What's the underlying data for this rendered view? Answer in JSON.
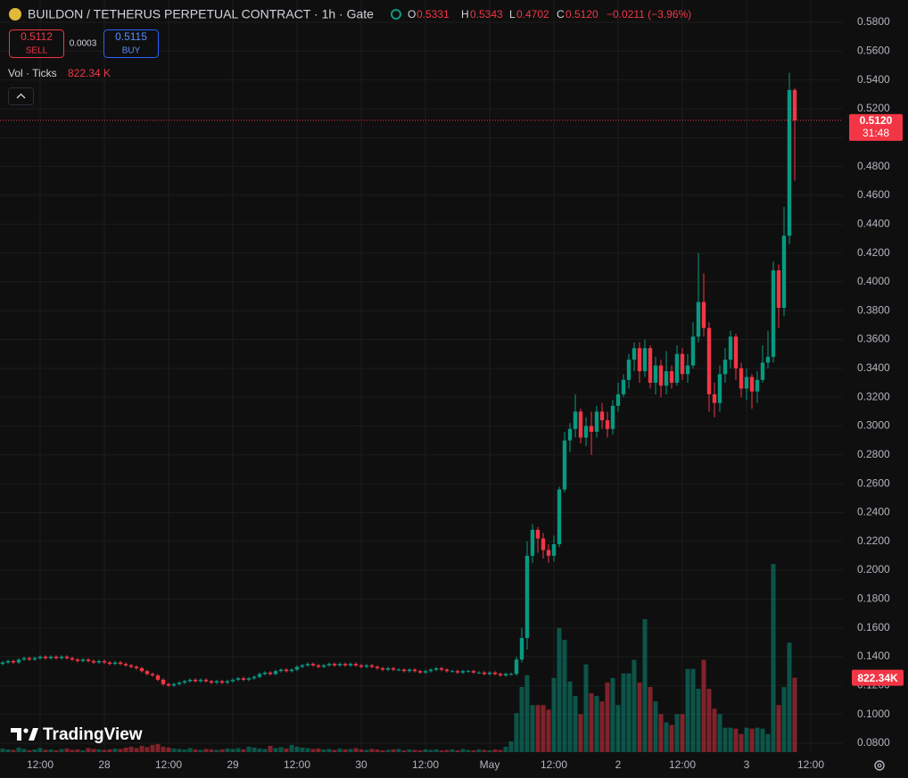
{
  "header": {
    "symbol": "BUILDON / TETHERUS PERPETUAL CONTRACT · 1h · Gate",
    "ohlc": [
      {
        "label": "O",
        "value": "0.5331"
      },
      {
        "label": "H",
        "value": "0.5343"
      },
      {
        "label": "L",
        "value": "0.4702"
      },
      {
        "label": "C",
        "value": "0.5120"
      }
    ],
    "change": "−0.0211 (−3.96%)",
    "sell": {
      "price": "0.5112",
      "label": "SELL"
    },
    "spread": "0.0003",
    "buy": {
      "price": "0.5115",
      "label": "BUY"
    },
    "volume_legend": {
      "label": "Vol · Ticks",
      "value": "822.34 K"
    },
    "price_tag": {
      "price": "0.5120",
      "countdown": "31:48"
    },
    "volume_tag": "822.34K",
    "brand": "TradingView"
  },
  "chart_data": {
    "type": "candlestick",
    "up_color": "#089981",
    "down_color": "#f23645",
    "grid": true,
    "xlim": [
      -0.5,
      157
    ],
    "ylim": [
      0.0738,
      0.5955
    ],
    "xticks": [
      {
        "value": 7,
        "label": "12:00"
      },
      {
        "value": 19,
        "label": "28"
      },
      {
        "value": 31,
        "label": "12:00"
      },
      {
        "value": 43,
        "label": "29"
      },
      {
        "value": 55,
        "label": "12:00"
      },
      {
        "value": 67,
        "label": "30"
      },
      {
        "value": 79,
        "label": "12:00"
      },
      {
        "value": 91,
        "label": "May"
      },
      {
        "value": 103,
        "label": "12:00"
      },
      {
        "value": 115,
        "label": "2"
      },
      {
        "value": 127,
        "label": "12:00"
      },
      {
        "value": 139,
        "label": "3"
      },
      {
        "value": 151,
        "label": "12:00"
      }
    ],
    "yticks": [
      {
        "value": 0.08,
        "label": "0.0800"
      },
      {
        "value": 0.1,
        "label": "0.1000"
      },
      {
        "value": 0.12,
        "label": "0.1200"
      },
      {
        "value": 0.14,
        "label": "0.1400"
      },
      {
        "value": 0.16,
        "label": "0.1600"
      },
      {
        "value": 0.18,
        "label": "0.1800"
      },
      {
        "value": 0.2,
        "label": "0.2000"
      },
      {
        "value": 0.22,
        "label": "0.2200"
      },
      {
        "value": 0.24,
        "label": "0.2400"
      },
      {
        "value": 0.26,
        "label": "0.2600"
      },
      {
        "value": 0.28,
        "label": "0.2800"
      },
      {
        "value": 0.3,
        "label": "0.3000"
      },
      {
        "value": 0.32,
        "label": "0.3200"
      },
      {
        "value": 0.34,
        "label": "0.3400"
      },
      {
        "value": 0.36,
        "label": "0.3600"
      },
      {
        "value": 0.38,
        "label": "0.3800"
      },
      {
        "value": 0.4,
        "label": "0.4000"
      },
      {
        "value": 0.42,
        "label": "0.4200"
      },
      {
        "value": 0.44,
        "label": "0.4400"
      },
      {
        "value": 0.46,
        "label": "0.4600"
      },
      {
        "value": 0.48,
        "label": "0.4800"
      },
      {
        "value": 0.5,
        "label": "0.5000"
      },
      {
        "value": 0.52,
        "label": "0.5200"
      },
      {
        "value": 0.54,
        "label": "0.5400"
      },
      {
        "value": 0.56,
        "label": "0.5600"
      },
      {
        "value": 0.58,
        "label": "0.5800"
      }
    ],
    "x": [
      0,
      1,
      2,
      3,
      4,
      5,
      6,
      7,
      8,
      9,
      10,
      11,
      12,
      13,
      14,
      15,
      16,
      17,
      18,
      19,
      20,
      21,
      22,
      23,
      24,
      25,
      26,
      27,
      28,
      29,
      30,
      31,
      32,
      33,
      34,
      35,
      36,
      37,
      38,
      39,
      40,
      41,
      42,
      43,
      44,
      45,
      46,
      47,
      48,
      49,
      50,
      51,
      52,
      53,
      54,
      55,
      56,
      57,
      58,
      59,
      60,
      61,
      62,
      63,
      64,
      65,
      66,
      67,
      68,
      69,
      70,
      71,
      72,
      73,
      74,
      75,
      76,
      77,
      78,
      79,
      80,
      81,
      82,
      83,
      84,
      85,
      86,
      87,
      88,
      89,
      90,
      91,
      92,
      93,
      94,
      95,
      96,
      97,
      98,
      99,
      100,
      101,
      102,
      103,
      104,
      105,
      106,
      107,
      108,
      109,
      110,
      111,
      112,
      113,
      114,
      115,
      116,
      117,
      118,
      119,
      120,
      121,
      122,
      123,
      124,
      125,
      126,
      127,
      128,
      129,
      130,
      131,
      132,
      133,
      134,
      135,
      136,
      137,
      138,
      139,
      140,
      141,
      142,
      143,
      144,
      145,
      146,
      147,
      148
    ],
    "open": [
      0.135,
      0.136,
      0.137,
      0.136,
      0.138,
      0.139,
      0.138,
      0.139,
      0.14,
      0.139,
      0.14,
      0.139,
      0.14,
      0.139,
      0.138,
      0.137,
      0.138,
      0.137,
      0.136,
      0.137,
      0.136,
      0.135,
      0.136,
      0.135,
      0.134,
      0.133,
      0.132,
      0.13,
      0.128,
      0.127,
      0.124,
      0.121,
      0.12,
      0.121,
      0.122,
      0.123,
      0.124,
      0.123,
      0.124,
      0.123,
      0.122,
      0.123,
      0.122,
      0.123,
      0.124,
      0.125,
      0.124,
      0.125,
      0.126,
      0.128,
      0.129,
      0.128,
      0.13,
      0.131,
      0.13,
      0.131,
      0.133,
      0.134,
      0.135,
      0.134,
      0.133,
      0.134,
      0.135,
      0.134,
      0.135,
      0.134,
      0.135,
      0.134,
      0.133,
      0.134,
      0.133,
      0.132,
      0.131,
      0.132,
      0.131,
      0.131,
      0.13,
      0.131,
      0.13,
      0.129,
      0.13,
      0.131,
      0.132,
      0.131,
      0.13,
      0.13,
      0.129,
      0.13,
      0.13,
      0.129,
      0.129,
      0.128,
      0.129,
      0.128,
      0.127,
      0.128,
      0.128,
      0.138,
      0.153,
      0.21,
      0.228,
      0.222,
      0.214,
      0.21,
      0.218,
      0.256,
      0.29,
      0.298,
      0.31,
      0.292,
      0.3,
      0.296,
      0.31,
      0.304,
      0.298,
      0.314,
      0.322,
      0.332,
      0.346,
      0.354,
      0.338,
      0.354,
      0.33,
      0.342,
      0.328,
      0.338,
      0.33,
      0.35,
      0.336,
      0.342,
      0.362,
      0.386,
      0.368,
      0.322,
      0.316,
      0.336,
      0.346,
      0.362,
      0.34,
      0.326,
      0.334,
      0.324,
      0.332,
      0.344,
      0.348,
      0.408,
      0.382,
      0.432,
      0.5331
    ],
    "high": [
      0.137,
      0.138,
      0.138,
      0.139,
      0.14,
      0.14,
      0.14,
      0.141,
      0.141,
      0.141,
      0.141,
      0.141,
      0.141,
      0.14,
      0.139,
      0.139,
      0.139,
      0.138,
      0.138,
      0.138,
      0.137,
      0.137,
      0.137,
      0.136,
      0.135,
      0.134,
      0.133,
      0.131,
      0.129,
      0.128,
      0.125,
      0.122,
      0.122,
      0.123,
      0.124,
      0.125,
      0.125,
      0.125,
      0.125,
      0.124,
      0.124,
      0.124,
      0.124,
      0.125,
      0.126,
      0.126,
      0.126,
      0.127,
      0.129,
      0.13,
      0.13,
      0.131,
      0.132,
      0.132,
      0.132,
      0.134,
      0.135,
      0.136,
      0.136,
      0.135,
      0.135,
      0.136,
      0.136,
      0.136,
      0.136,
      0.136,
      0.136,
      0.135,
      0.135,
      0.135,
      0.134,
      0.133,
      0.133,
      0.133,
      0.132,
      0.132,
      0.132,
      0.132,
      0.131,
      0.131,
      0.132,
      0.133,
      0.133,
      0.132,
      0.131,
      0.131,
      0.131,
      0.131,
      0.131,
      0.13,
      0.13,
      0.13,
      0.13,
      0.129,
      0.129,
      0.129,
      0.14,
      0.16,
      0.22,
      0.232,
      0.23,
      0.226,
      0.218,
      0.224,
      0.258,
      0.296,
      0.302,
      0.322,
      0.312,
      0.306,
      0.31,
      0.314,
      0.316,
      0.31,
      0.318,
      0.33,
      0.336,
      0.35,
      0.358,
      0.358,
      0.36,
      0.356,
      0.348,
      0.346,
      0.352,
      0.342,
      0.356,
      0.354,
      0.35,
      0.372,
      0.42,
      0.406,
      0.372,
      0.33,
      0.342,
      0.354,
      0.366,
      0.364,
      0.344,
      0.34,
      0.336,
      0.338,
      0.356,
      0.366,
      0.414,
      0.412,
      0.452,
      0.545,
      0.5343
    ],
    "low": [
      0.134,
      0.135,
      0.135,
      0.135,
      0.137,
      0.137,
      0.137,
      0.138,
      0.138,
      0.138,
      0.138,
      0.138,
      0.138,
      0.137,
      0.136,
      0.136,
      0.136,
      0.135,
      0.135,
      0.135,
      0.134,
      0.134,
      0.134,
      0.133,
      0.132,
      0.131,
      0.129,
      0.127,
      0.126,
      0.123,
      0.12,
      0.119,
      0.119,
      0.12,
      0.121,
      0.122,
      0.122,
      0.122,
      0.122,
      0.121,
      0.121,
      0.121,
      0.121,
      0.122,
      0.123,
      0.123,
      0.123,
      0.124,
      0.125,
      0.127,
      0.127,
      0.127,
      0.129,
      0.129,
      0.129,
      0.13,
      0.132,
      0.133,
      0.133,
      0.132,
      0.132,
      0.133,
      0.133,
      0.133,
      0.133,
      0.133,
      0.133,
      0.132,
      0.132,
      0.132,
      0.131,
      0.13,
      0.13,
      0.13,
      0.13,
      0.129,
      0.129,
      0.129,
      0.128,
      0.128,
      0.129,
      0.13,
      0.13,
      0.129,
      0.129,
      0.128,
      0.128,
      0.129,
      0.128,
      0.128,
      0.127,
      0.127,
      0.127,
      0.126,
      0.126,
      0.127,
      0.127,
      0.136,
      0.145,
      0.205,
      0.212,
      0.208,
      0.205,
      0.206,
      0.216,
      0.254,
      0.282,
      0.292,
      0.288,
      0.286,
      0.28,
      0.292,
      0.298,
      0.292,
      0.294,
      0.31,
      0.32,
      0.326,
      0.338,
      0.33,
      0.334,
      0.326,
      0.322,
      0.32,
      0.322,
      0.326,
      0.328,
      0.332,
      0.33,
      0.34,
      0.358,
      0.362,
      0.31,
      0.306,
      0.31,
      0.33,
      0.34,
      0.332,
      0.32,
      0.318,
      0.312,
      0.316,
      0.33,
      0.34,
      0.344,
      0.368,
      0.376,
      0.426,
      0.4702
    ],
    "close": [
      0.136,
      0.137,
      0.136,
      0.138,
      0.139,
      0.138,
      0.139,
      0.14,
      0.139,
      0.14,
      0.139,
      0.14,
      0.139,
      0.138,
      0.137,
      0.138,
      0.137,
      0.136,
      0.137,
      0.136,
      0.135,
      0.136,
      0.135,
      0.134,
      0.133,
      0.132,
      0.13,
      0.128,
      0.127,
      0.124,
      0.121,
      0.12,
      0.121,
      0.122,
      0.123,
      0.124,
      0.123,
      0.124,
      0.123,
      0.122,
      0.123,
      0.122,
      0.123,
      0.124,
      0.125,
      0.124,
      0.125,
      0.126,
      0.128,
      0.129,
      0.128,
      0.13,
      0.131,
      0.13,
      0.131,
      0.133,
      0.134,
      0.135,
      0.134,
      0.133,
      0.134,
      0.135,
      0.134,
      0.135,
      0.134,
      0.135,
      0.134,
      0.133,
      0.134,
      0.133,
      0.132,
      0.131,
      0.132,
      0.131,
      0.131,
      0.13,
      0.131,
      0.13,
      0.129,
      0.13,
      0.131,
      0.132,
      0.131,
      0.13,
      0.13,
      0.129,
      0.13,
      0.13,
      0.129,
      0.129,
      0.128,
      0.129,
      0.128,
      0.127,
      0.128,
      0.128,
      0.138,
      0.153,
      0.21,
      0.228,
      0.222,
      0.214,
      0.21,
      0.218,
      0.256,
      0.29,
      0.298,
      0.31,
      0.292,
      0.3,
      0.296,
      0.31,
      0.304,
      0.298,
      0.314,
      0.322,
      0.332,
      0.346,
      0.354,
      0.338,
      0.354,
      0.33,
      0.342,
      0.328,
      0.338,
      0.33,
      0.35,
      0.336,
      0.342,
      0.362,
      0.386,
      0.368,
      0.322,
      0.316,
      0.336,
      0.346,
      0.362,
      0.34,
      0.326,
      0.334,
      0.324,
      0.332,
      0.344,
      0.348,
      0.408,
      0.382,
      0.432,
      0.5331,
      0.512
    ],
    "volume": [
      40,
      30,
      25,
      50,
      35,
      20,
      30,
      45,
      25,
      30,
      20,
      35,
      40,
      25,
      30,
      20,
      45,
      35,
      30,
      25,
      30,
      40,
      35,
      50,
      60,
      45,
      70,
      55,
      80,
      90,
      60,
      50,
      40,
      35,
      30,
      45,
      30,
      25,
      35,
      30,
      25,
      30,
      40,
      35,
      45,
      30,
      60,
      50,
      40,
      35,
      70,
      45,
      55,
      40,
      80,
      60,
      50,
      45,
      35,
      40,
      30,
      35,
      25,
      40,
      30,
      35,
      45,
      30,
      25,
      35,
      30,
      20,
      25,
      30,
      35,
      20,
      30,
      25,
      20,
      30,
      25,
      30,
      20,
      25,
      30,
      20,
      35,
      25,
      20,
      30,
      25,
      20,
      30,
      25,
      60,
      120,
      430,
      720,
      850,
      520,
      520,
      520,
      470,
      820,
      1370,
      1240,
      780,
      620,
      420,
      970,
      650,
      620,
      560,
      770,
      820,
      520,
      870,
      870,
      1020,
      770,
      1470,
      720,
      560,
      420,
      330,
      300,
      420,
      420,
      920,
      920,
      700,
      1020,
      700,
      480,
      420,
      270,
      270,
      260,
      200,
      270,
      260,
      270,
      260,
      200,
      2080,
      520,
      720,
      1210,
      822.34
    ]
  }
}
